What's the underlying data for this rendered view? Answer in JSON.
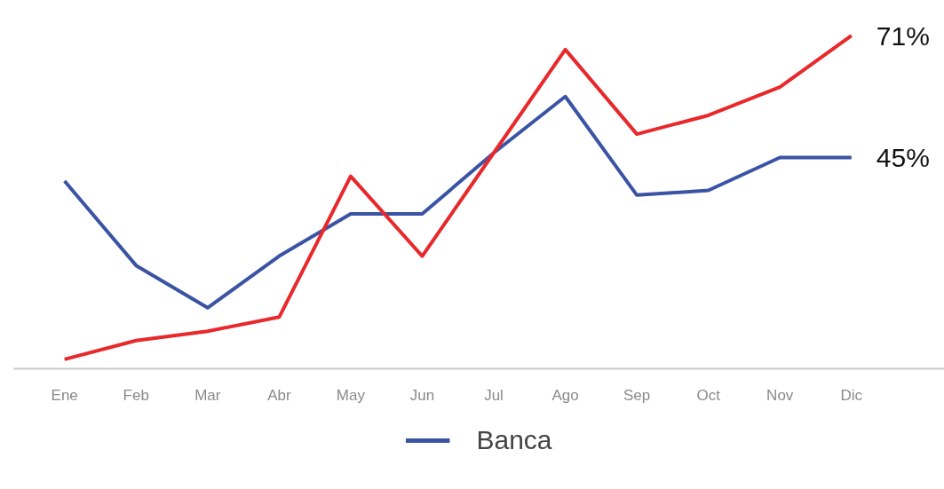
{
  "chart_data": {
    "type": "line",
    "categories": [
      "Ene",
      "Feb",
      "Mar",
      "Abr",
      "May",
      "Jun",
      "Jul",
      "Ago",
      "Sep",
      "Oct",
      "Nov",
      "Dic"
    ],
    "series": [
      {
        "name": "Banca",
        "color": "#3a53a4",
        "values": [
          40,
          22,
          13,
          24,
          33,
          33,
          46,
          58,
          37,
          38,
          45,
          45
        ],
        "value_labels": [
          null,
          null,
          null,
          null,
          null,
          null,
          null,
          null,
          null,
          null,
          null,
          "45%"
        ]
      },
      {
        "color": "#e8282b",
        "values": [
          2,
          6,
          8,
          11,
          41,
          24,
          46,
          68,
          50,
          54,
          60,
          71
        ],
        "value_labels": [
          null,
          null,
          null,
          null,
          null,
          null,
          null,
          null,
          null,
          null,
          null,
          "71%"
        ]
      }
    ],
    "tick_labels": "x",
    "grid": false,
    "legend": "bottom",
    "marker": "none",
    "line_style": "solid"
  }
}
